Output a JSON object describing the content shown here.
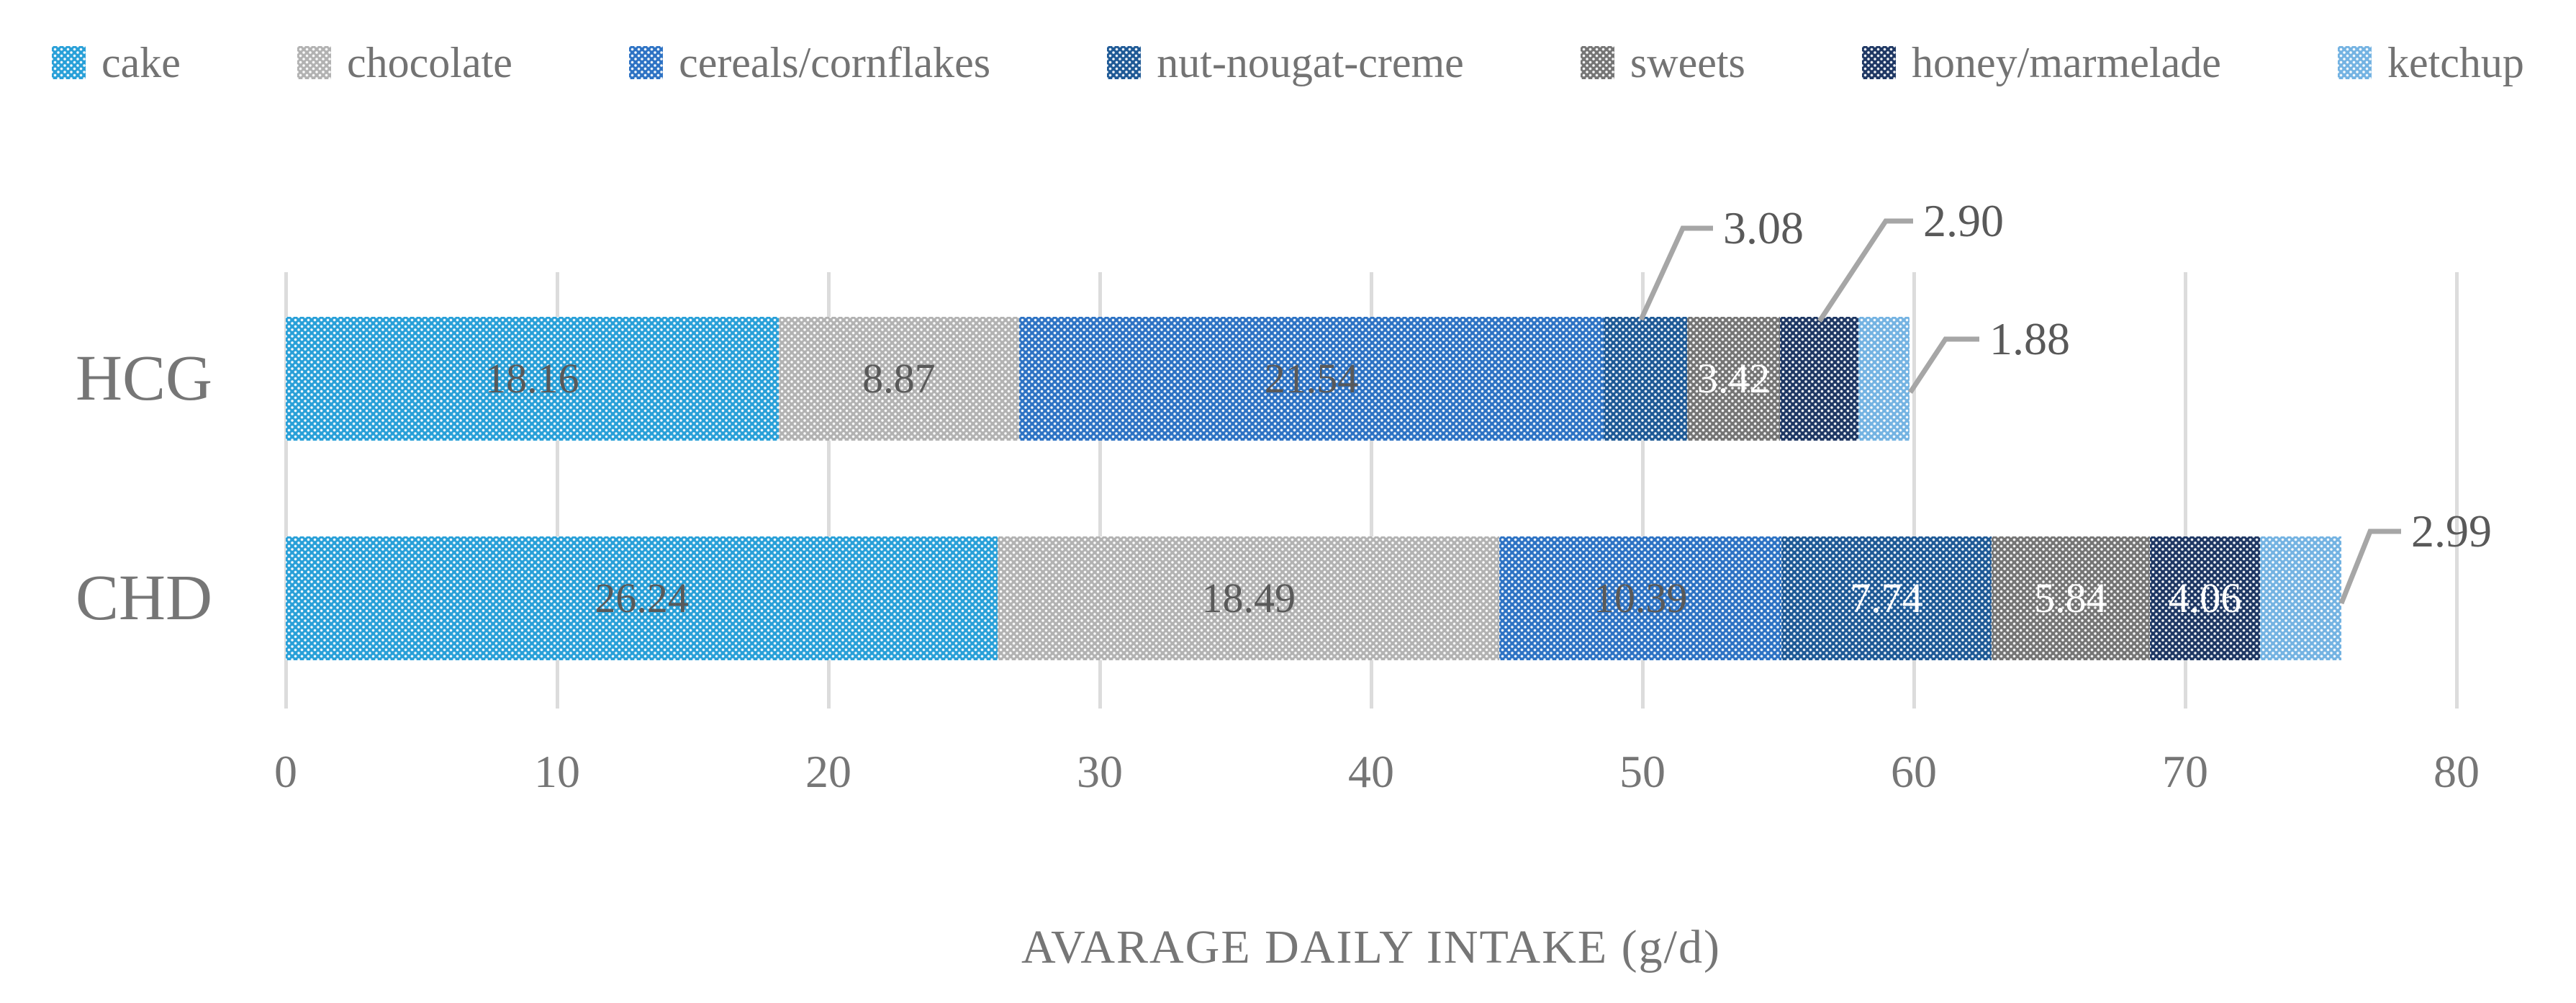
{
  "chart_data": {
    "type": "bar",
    "orientation": "horizontal",
    "stacked": true,
    "xlabel": "AVARAGE DAILY INTAKE (g/d)",
    "categories": [
      "HCG",
      "CHD"
    ],
    "series": [
      {
        "name": "cake",
        "color": "#29A0D8",
        "values": [
          18.16,
          26.24
        ]
      },
      {
        "name": "chocolate",
        "color": "#B2B2B2",
        "values": [
          8.87,
          18.49
        ]
      },
      {
        "name": "cereals/cornflakes",
        "color": "#2E73C4",
        "values": [
          21.54,
          10.39
        ]
      },
      {
        "name": "nut-nougat-creme",
        "color": "#1F5A96",
        "values": [
          3.08,
          7.74
        ]
      },
      {
        "name": "sweets",
        "color": "#757575",
        "values": [
          3.42,
          5.84
        ]
      },
      {
        "name": "honey/marmelade",
        "color": "#1F3864",
        "values": [
          2.9,
          4.06
        ]
      },
      {
        "name": "ketchup",
        "color": "#74B3E2",
        "values": [
          1.88,
          2.99
        ]
      }
    ],
    "x_ticks": [
      0,
      10,
      20,
      30,
      40,
      50,
      60,
      70,
      80
    ],
    "xlim": [
      0,
      80
    ],
    "grid": "vertical",
    "legend_position": "top",
    "value_labels": {
      "HCG": [
        "18.16",
        "8.87",
        "21.54",
        "3.08",
        "3.42",
        "2.90",
        "1.88"
      ],
      "CHD": [
        "26.24",
        "18.49",
        "10.39",
        "7.74",
        "5.84",
        "4.06",
        "2.99"
      ]
    },
    "label_styles": {
      "HCG": [
        "dark",
        "dark",
        "dark",
        "callout",
        "white",
        "callout",
        "callout"
      ],
      "CHD": [
        "dark",
        "dark",
        "dark",
        "white",
        "white",
        "white",
        "callout"
      ]
    },
    "annotations": [
      {
        "category": "HCG",
        "series": "nut-nougat-creme",
        "text": "3.08"
      },
      {
        "category": "HCG",
        "series": "honey/marmelade",
        "text": "2.90"
      },
      {
        "category": "HCG",
        "series": "ketchup",
        "text": "1.88"
      },
      {
        "category": "CHD",
        "series": "ketchup",
        "text": "2.99"
      }
    ],
    "colors": {
      "value_label_dark": "#595959",
      "value_label_light": "#FFFFFF",
      "axis_text": "#767676",
      "category_text": "#767676",
      "legend_text": "#737373",
      "leader_line": "#A6A6A6",
      "gridline": "#DCDCDC",
      "background": "#FFFFFF"
    }
  }
}
